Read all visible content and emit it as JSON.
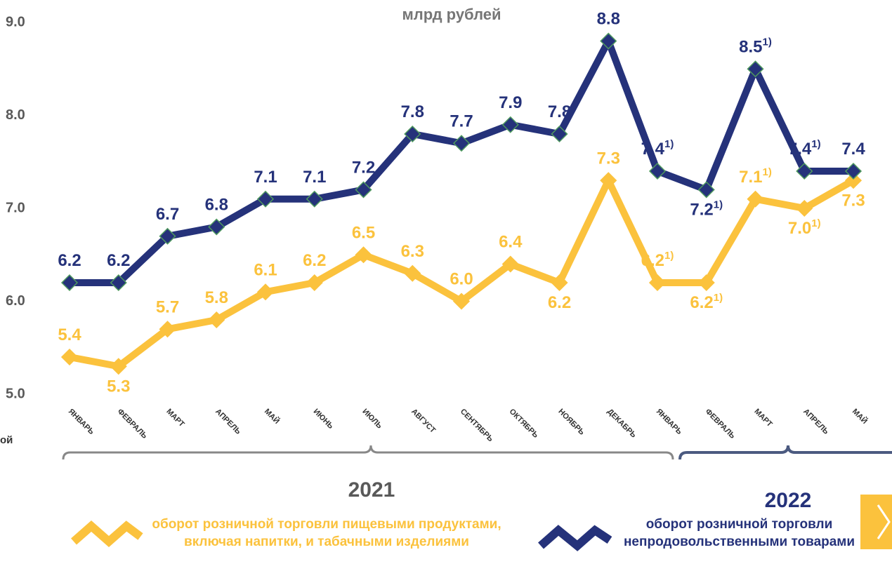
{
  "chart_data": {
    "type": "line",
    "subtitle": "млрд рублей",
    "categories": [
      "ЯНВАРЬ",
      "ФЕВРАЛЬ",
      "МАРТ",
      "АПРЕЛЬ",
      "МАЙ",
      "ИЮНЬ",
      "ИЮЛЬ",
      "АВГУСТ",
      "СЕНТЯБРЬ",
      "ОКТЯБРЬ",
      "НОЯБРЬ",
      "ДЕКАБРЬ",
      "ЯНВАРЬ",
      "ФЕВРАЛЬ",
      "МАРТ",
      "АПРЕЛЬ",
      "МАЙ"
    ],
    "groups": [
      "2021",
      "2022"
    ],
    "series": [
      {
        "name": "оборот розничной торговли пищевыми продуктами, включая напитки, и табачными изделиями",
        "color": "#fbc23d",
        "values": [
          5.4,
          5.3,
          5.7,
          5.8,
          6.1,
          6.2,
          6.5,
          6.3,
          6.0,
          6.4,
          6.2,
          7.3,
          6.2,
          6.2,
          7.1,
          7.0,
          7.3
        ],
        "value_labels": [
          "5.4",
          "5.3",
          "5.7",
          "5.8",
          "6.1",
          "6.2",
          "6.5",
          "6.3",
          "6.0",
          "6.4",
          "6.2",
          "7.3",
          "6.2",
          "6.2",
          "7.1",
          "7.0",
          "7.3"
        ],
        "value_label_notes": [
          null,
          null,
          null,
          null,
          null,
          null,
          null,
          null,
          null,
          null,
          null,
          null,
          "1)",
          "1)",
          "1)",
          "1)",
          null
        ]
      },
      {
        "name": "оборот розничной торговли непродовольственными товарами",
        "color": "#25327a",
        "values": [
          6.2,
          6.2,
          6.7,
          6.8,
          7.1,
          7.1,
          7.2,
          7.8,
          7.7,
          7.9,
          7.8,
          8.8,
          7.4,
          7.2,
          8.5,
          7.4,
          7.4
        ],
        "value_labels": [
          "6.2",
          "6.2",
          "6.7",
          "6.8",
          "7.1",
          "7.1",
          "7.2",
          "7.8",
          "7.7",
          "7.9",
          "7.8",
          "8.8",
          "7.4",
          "7.2",
          "8.5",
          "7.4",
          "7.4"
        ],
        "value_label_notes": [
          null,
          null,
          null,
          null,
          null,
          null,
          null,
          null,
          null,
          null,
          null,
          null,
          "1)",
          "1)",
          "1)",
          "1)",
          null
        ]
      }
    ],
    "ylim": [
      5,
      9
    ],
    "yticks": [
      {
        "value": 5,
        "label": "5.0"
      },
      {
        "value": 6,
        "label": "6.0"
      },
      {
        "value": 7,
        "label": "7.0"
      },
      {
        "value": 8,
        "label": "8.0"
      },
      {
        "value": 9,
        "label": "9.0"
      }
    ],
    "left_edge_text": "ой"
  }
}
